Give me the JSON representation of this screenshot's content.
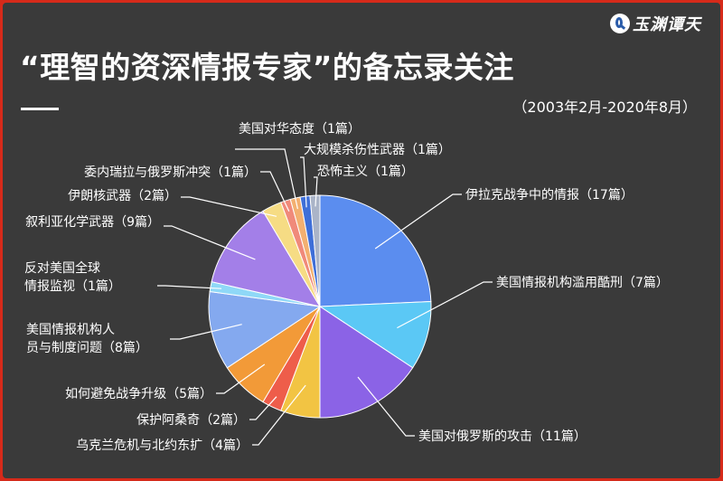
{
  "logo": {
    "text": "玉渊谭天",
    "icon": "logo-mark-icon"
  },
  "title": "“理智的资深情报专家”的备忘录关注",
  "subtitle": "（2003年2月-2020年8月）",
  "colors": {
    "border": "#d62a1a",
    "background": "#3a3a3a",
    "text": "#ffffff",
    "leader": "#ffffff"
  },
  "chart_data": {
    "type": "pie",
    "title": "“理智的资深情报专家”的备忘录关注",
    "subtitle": "（2003年2月-2020年8月）",
    "unit": "篇",
    "start": "12 o'clock, clockwise",
    "slices": [
      {
        "label": "伊拉克战争中的情报（17篇）",
        "value": 17,
        "color": "#5b8def"
      },
      {
        "label": "美国情报机构滥用酷刑（7篇）",
        "value": 7,
        "color": "#5bc8f5"
      },
      {
        "label": "美国对俄罗斯的攻击（11篇）",
        "value": 11,
        "color": "#8b63e6"
      },
      {
        "label": "乌克兰危机与北约东扩（4篇）",
        "value": 4,
        "color": "#f2c443"
      },
      {
        "label": "保护阿桑奇（2篇）",
        "value": 2,
        "color": "#ee5d4a"
      },
      {
        "label": "如何避免战争升级（5篇）",
        "value": 5,
        "color": "#f29a38"
      },
      {
        "label": "美国情报机构人员与制度问题（8篇）",
        "value": 8,
        "color": "#84a9ef"
      },
      {
        "label": "反对美国全球情报监视（1篇）",
        "value": 1,
        "color": "#8fd8f7"
      },
      {
        "label": "叙利亚化学武器（9篇）",
        "value": 9,
        "color": "#a37fe8"
      },
      {
        "label": "伊朗核武器（2篇）",
        "value": 2,
        "color": "#f6dc84"
      },
      {
        "label": "委内瑞拉与俄罗斯冲突（1篇）",
        "value": 1,
        "color": "#f08a7a"
      },
      {
        "label": "美国对华态度（1篇）",
        "value": 1,
        "color": "#f3b070"
      },
      {
        "label": "大规模杀伤性武器（1篇）",
        "value": 1,
        "color": "#3f6fd8"
      },
      {
        "label": "恐怖主义（1篇）",
        "value": 1,
        "color": "#aab4c8"
      }
    ]
  }
}
